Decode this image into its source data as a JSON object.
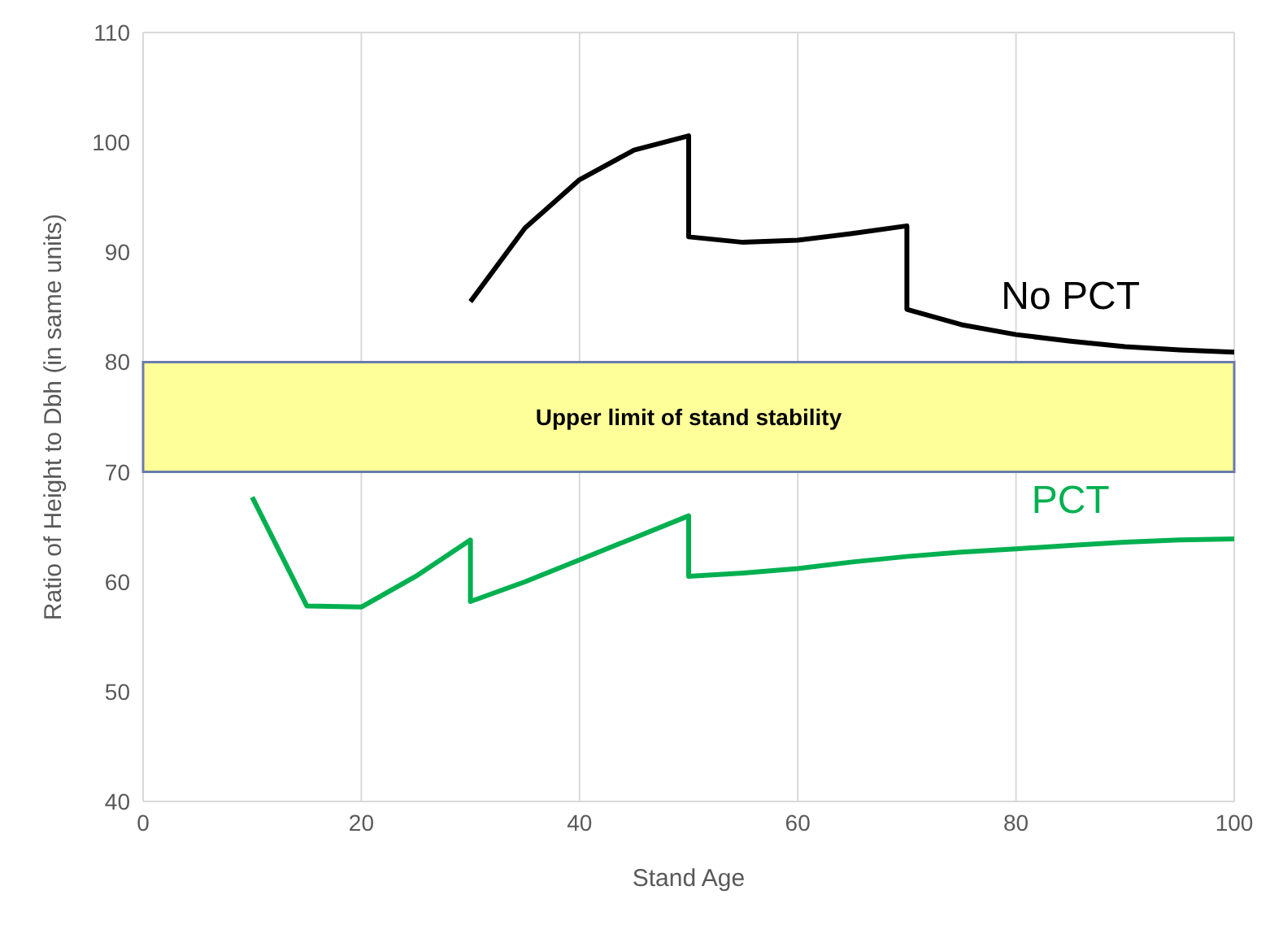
{
  "chart_data": {
    "type": "line",
    "xlabel": "Stand Age",
    "ylabel": "Ratio of Height to Dbh (in same units)",
    "xlim": [
      0,
      100
    ],
    "xticks": [
      0,
      20,
      40,
      60,
      80,
      100
    ],
    "ylim": [
      40,
      110
    ],
    "yticks": [
      40,
      50,
      60,
      70,
      80,
      90,
      100,
      110
    ],
    "grid": true,
    "legend": false,
    "marker": "none",
    "line_style": "solid",
    "bands": [
      {
        "axis": "y",
        "from": 70,
        "to": 80,
        "label": "Upper limit of stand stability",
        "color": "#ffff99"
      }
    ],
    "series": [
      {
        "name": "No PCT",
        "color": "#000000",
        "x": [
          30,
          35,
          40,
          45,
          50,
          50,
          55,
          60,
          65,
          70,
          70,
          75,
          80,
          85,
          90,
          95,
          100
        ],
        "values": [
          85.5,
          92.2,
          96.6,
          99.3,
          100.6,
          91.4,
          90.9,
          91.1,
          91.7,
          92.4,
          84.8,
          83.4,
          82.5,
          81.9,
          81.4,
          81.1,
          80.9
        ]
      },
      {
        "name": "PCT",
        "color": "#00b050",
        "x": [
          10,
          15,
          20,
          25,
          30,
          30,
          35,
          40,
          45,
          50,
          50,
          55,
          60,
          65,
          70,
          75,
          80,
          85,
          90,
          95,
          100
        ],
        "values": [
          67.7,
          57.8,
          57.7,
          60.5,
          63.8,
          58.2,
          60.0,
          62.0,
          64.0,
          66.0,
          60.5,
          60.8,
          61.2,
          61.8,
          62.3,
          62.7,
          63.0,
          63.3,
          63.6,
          63.8,
          63.9
        ]
      }
    ]
  }
}
